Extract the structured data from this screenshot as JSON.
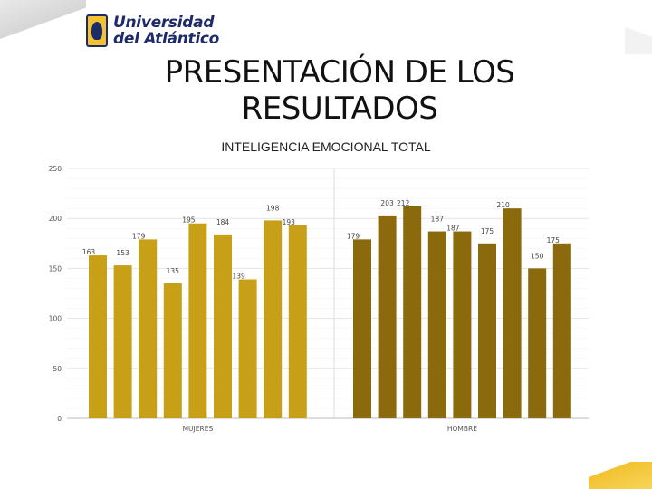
{
  "logo": {
    "line1": "Universidad",
    "line2": "del Atlántico"
  },
  "title": {
    "line1": "PRESENTACIÓN DE LOS",
    "line2": "RESULTADOS"
  },
  "colors": {
    "mujeres": "#c8a018",
    "hombre": "#8a6a0c",
    "accent": "#f2c230",
    "brand": "#1d2b6b"
  },
  "chart_data": {
    "type": "bar",
    "title": "INTELIGENCIA EMOCIONAL TOTAL",
    "ylim": [
      0,
      250
    ],
    "yticks": [
      0,
      50,
      100,
      150,
      200,
      250
    ],
    "grid": true,
    "groups": [
      {
        "name": "MUJERES",
        "values": [
          163,
          153,
          179,
          135,
          195,
          184,
          139,
          198,
          193
        ]
      },
      {
        "name": "HOMBRE",
        "values": [
          179,
          203,
          212,
          187,
          187,
          175,
          210,
          150,
          175
        ]
      }
    ]
  }
}
